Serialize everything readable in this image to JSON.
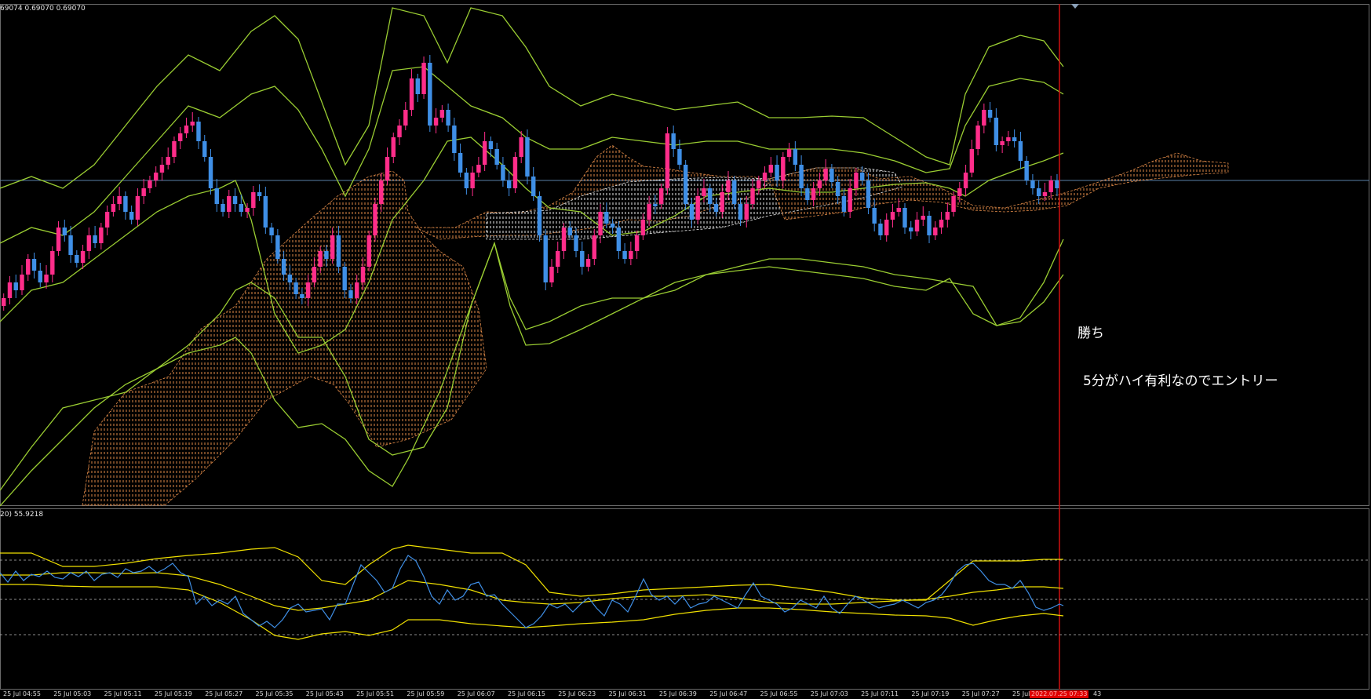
{
  "main_header": "69074 0.69070 0.69070",
  "sub_header": "20) 55.9218",
  "annotations": {
    "win": "勝ち",
    "entry": "5分がハイ有利なのでエントリー"
  },
  "time_axis": {
    "labels": [
      "25 Jul 04:55",
      "25 Jul 05:03",
      "25 Jul 05:11",
      "25 Jul 05:19",
      "25 Jul 05:27",
      "25 Jul 05:35",
      "25 Jul 05:43",
      "25 Jul 05:51",
      "25 Jul 05:59",
      "25 Jul 06:07",
      "25 Jul 06:15",
      "25 Jul 06:23",
      "25 Jul 06:31",
      "25 Jul 06:39",
      "25 Jul 06:47",
      "25 Jul 06:55",
      "25 Jul 07:03",
      "25 Jul 07:11",
      "25 Jul 07:19",
      "25 Jul 07:27",
      "25 Jul"
    ],
    "current_time_marker": "2022.07.25 07:33",
    "trailing_fragment": "43"
  },
  "colors": {
    "background": "#000000",
    "bull_candle": "#ff2d8a",
    "bear_candle": "#3f8fe6",
    "bollinger": "#9acd32",
    "ichimoku_cloud": "#e08a48",
    "ichimoku_cloud_alt": "#e8e8e8",
    "current_bar_line": "#d01010",
    "price_line": "#5a7fa8",
    "oscillator": "#3f8fe6",
    "oscillator_bands": "#f0e000",
    "level_lines": "#bbbbbb"
  }
}
